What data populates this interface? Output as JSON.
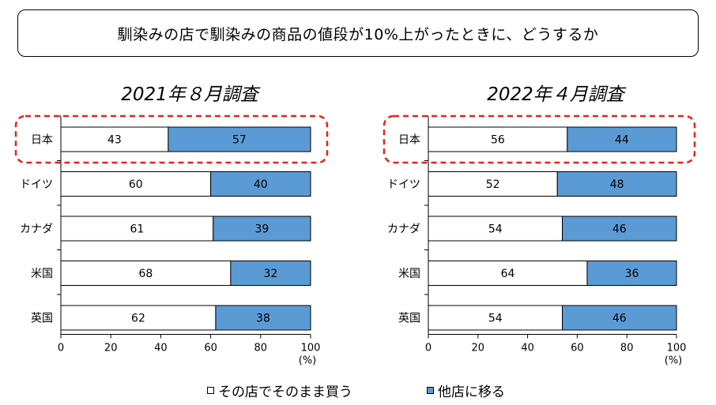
{
  "header": {
    "title": "馴染みの店で馴染みの商品の値段が10%上がったときに、どうするか"
  },
  "colors": {
    "stay": "#ffffff",
    "switch": "#5b9bd5",
    "highlight": "#e8231c",
    "border": "#000000"
  },
  "chart_data": [
    {
      "type": "bar",
      "orientation": "horizontal-stacked",
      "title": "2021年８月調査",
      "categories": [
        "日本",
        "ドイツ",
        "カナダ",
        "米国",
        "英国"
      ],
      "series": [
        {
          "name": "その店でそのまま買う",
          "values": [
            43,
            60,
            61,
            68,
            62
          ]
        },
        {
          "name": "他店に移る",
          "values": [
            57,
            40,
            39,
            32,
            38
          ]
        }
      ],
      "xlim": [
        0,
        100
      ],
      "xticks": [
        0,
        20,
        40,
        60,
        80,
        100
      ],
      "unit": "(%)",
      "highlighted_category": "日本"
    },
    {
      "type": "bar",
      "orientation": "horizontal-stacked",
      "title": "2022年４月調査",
      "categories": [
        "日本",
        "ドイツ",
        "カナダ",
        "米国",
        "英国"
      ],
      "series": [
        {
          "name": "その店でそのまま買う",
          "values": [
            56,
            52,
            54,
            64,
            54
          ]
        },
        {
          "name": "他店に移る",
          "values": [
            44,
            48,
            46,
            36,
            46
          ]
        }
      ],
      "xlim": [
        0,
        100
      ],
      "xticks": [
        0,
        20,
        40,
        60,
        80,
        100
      ],
      "unit": "(%)",
      "highlighted_category": "日本"
    }
  ],
  "legend": {
    "stay_label": "その店でそのまま買う",
    "switch_label": "他店に移る"
  }
}
